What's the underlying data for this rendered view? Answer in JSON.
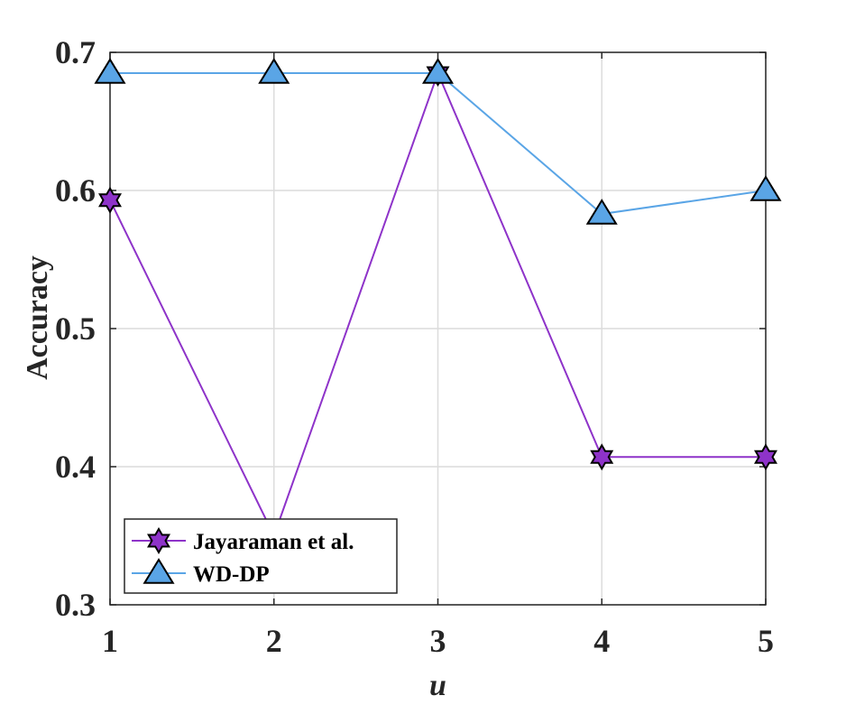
{
  "chart_data": {
    "type": "line",
    "title": "",
    "xlabel": "u",
    "ylabel": "Accuracy",
    "x": [
      1,
      2,
      3,
      4,
      5
    ],
    "xlim": [
      1,
      5
    ],
    "ylim": [
      0.3,
      0.7
    ],
    "xticks": [
      1,
      2,
      3,
      4,
      5
    ],
    "yticks": [
      0.3,
      0.4,
      0.5,
      0.6,
      0.7
    ],
    "xtick_labels": [
      "1",
      "2",
      "3",
      "4",
      "5"
    ],
    "ytick_labels": [
      "0.3",
      "0.4",
      "0.5",
      "0.6",
      "0.7"
    ],
    "grid": true,
    "legend_position": "bottom-left",
    "series": [
      {
        "name": "Jayaraman et al.",
        "values": [
          0.593,
          0.35,
          0.685,
          0.407,
          0.407
        ],
        "color": "#8e33c9",
        "marker": "hexagram"
      },
      {
        "name": "WD-DP",
        "values": [
          0.685,
          0.685,
          0.685,
          0.583,
          0.6
        ],
        "color": "#5aa5e6",
        "marker": "triangle"
      }
    ]
  }
}
